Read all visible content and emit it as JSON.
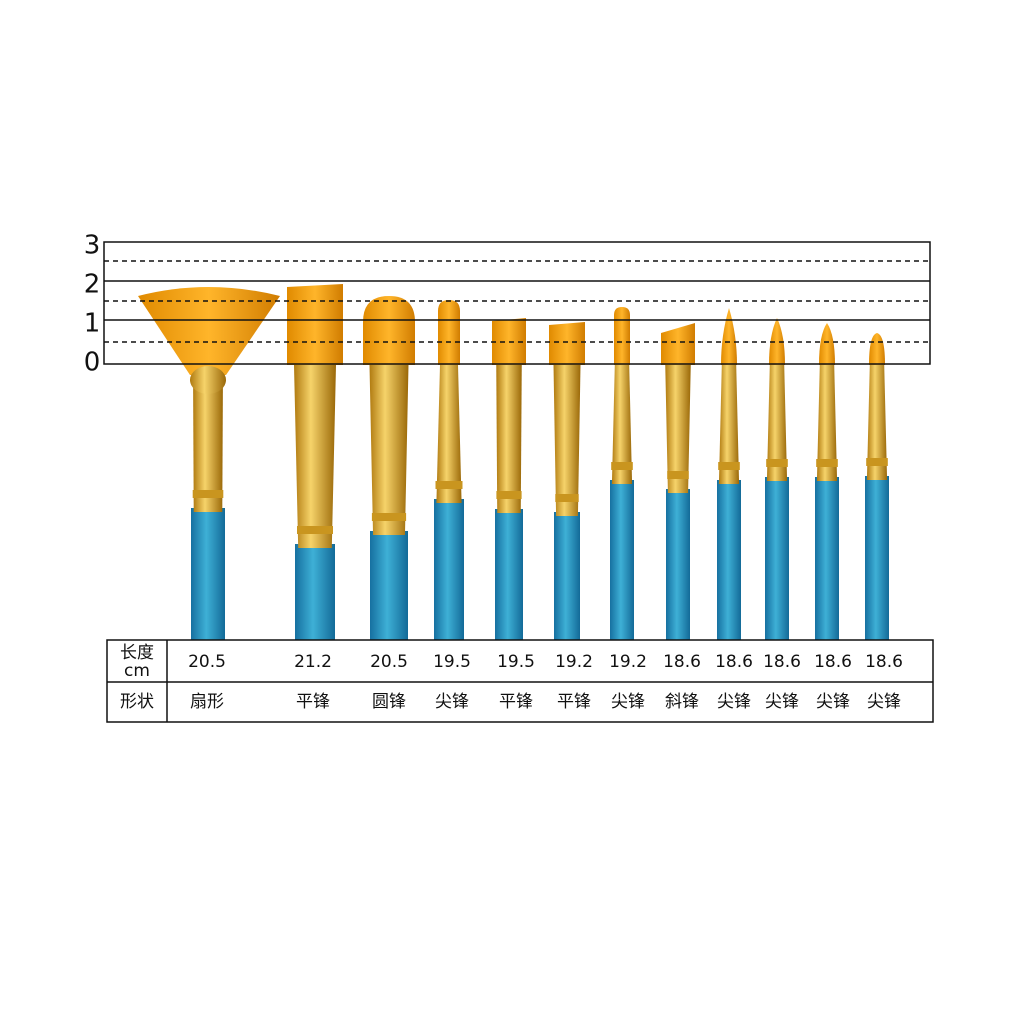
{
  "ruler": {
    "labels": [
      "3",
      "2",
      "1",
      "0"
    ]
  },
  "table": {
    "header": {
      "length": [
        "长度",
        "cm"
      ],
      "shape": "形状"
    },
    "lengths": [
      20.5,
      21.2,
      20.5,
      19.5,
      19.5,
      19.2,
      19.2,
      18.6,
      18.6,
      18.6,
      18.6,
      18.6
    ],
    "shapes": [
      "扇形",
      "平锋",
      "圆锋",
      "尖锋",
      "平锋",
      "平锋",
      "尖锋",
      "斜锋",
      "尖锋",
      "尖锋",
      "尖锋",
      "尖锋"
    ]
  }
}
